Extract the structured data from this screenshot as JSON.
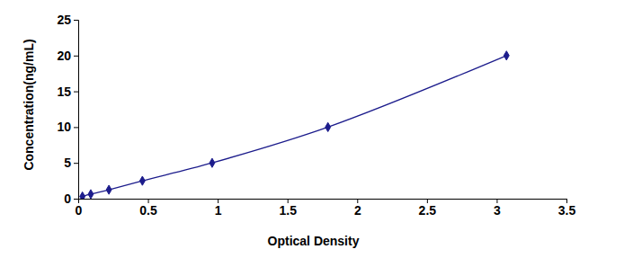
{
  "chart_data": {
    "type": "line",
    "x_label": "Optical Density",
    "y_label": "Concentration(ng/mL)",
    "x": [
      0.03,
      0.09,
      0.22,
      0.46,
      0.96,
      1.79,
      3.07
    ],
    "values": [
      0.31,
      0.63,
      1.25,
      2.5,
      5,
      10,
      20
    ],
    "color": "#1c1c8c",
    "marker": "diamond",
    "line_style": "solid",
    "grid": false,
    "xlim": [
      0,
      3.5
    ],
    "xticks": [
      0,
      0.5,
      1,
      1.5,
      2,
      2.5,
      3,
      3.5
    ],
    "ylim": [
      0,
      25
    ],
    "yticks": [
      0,
      5,
      10,
      15,
      20,
      25
    ]
  }
}
